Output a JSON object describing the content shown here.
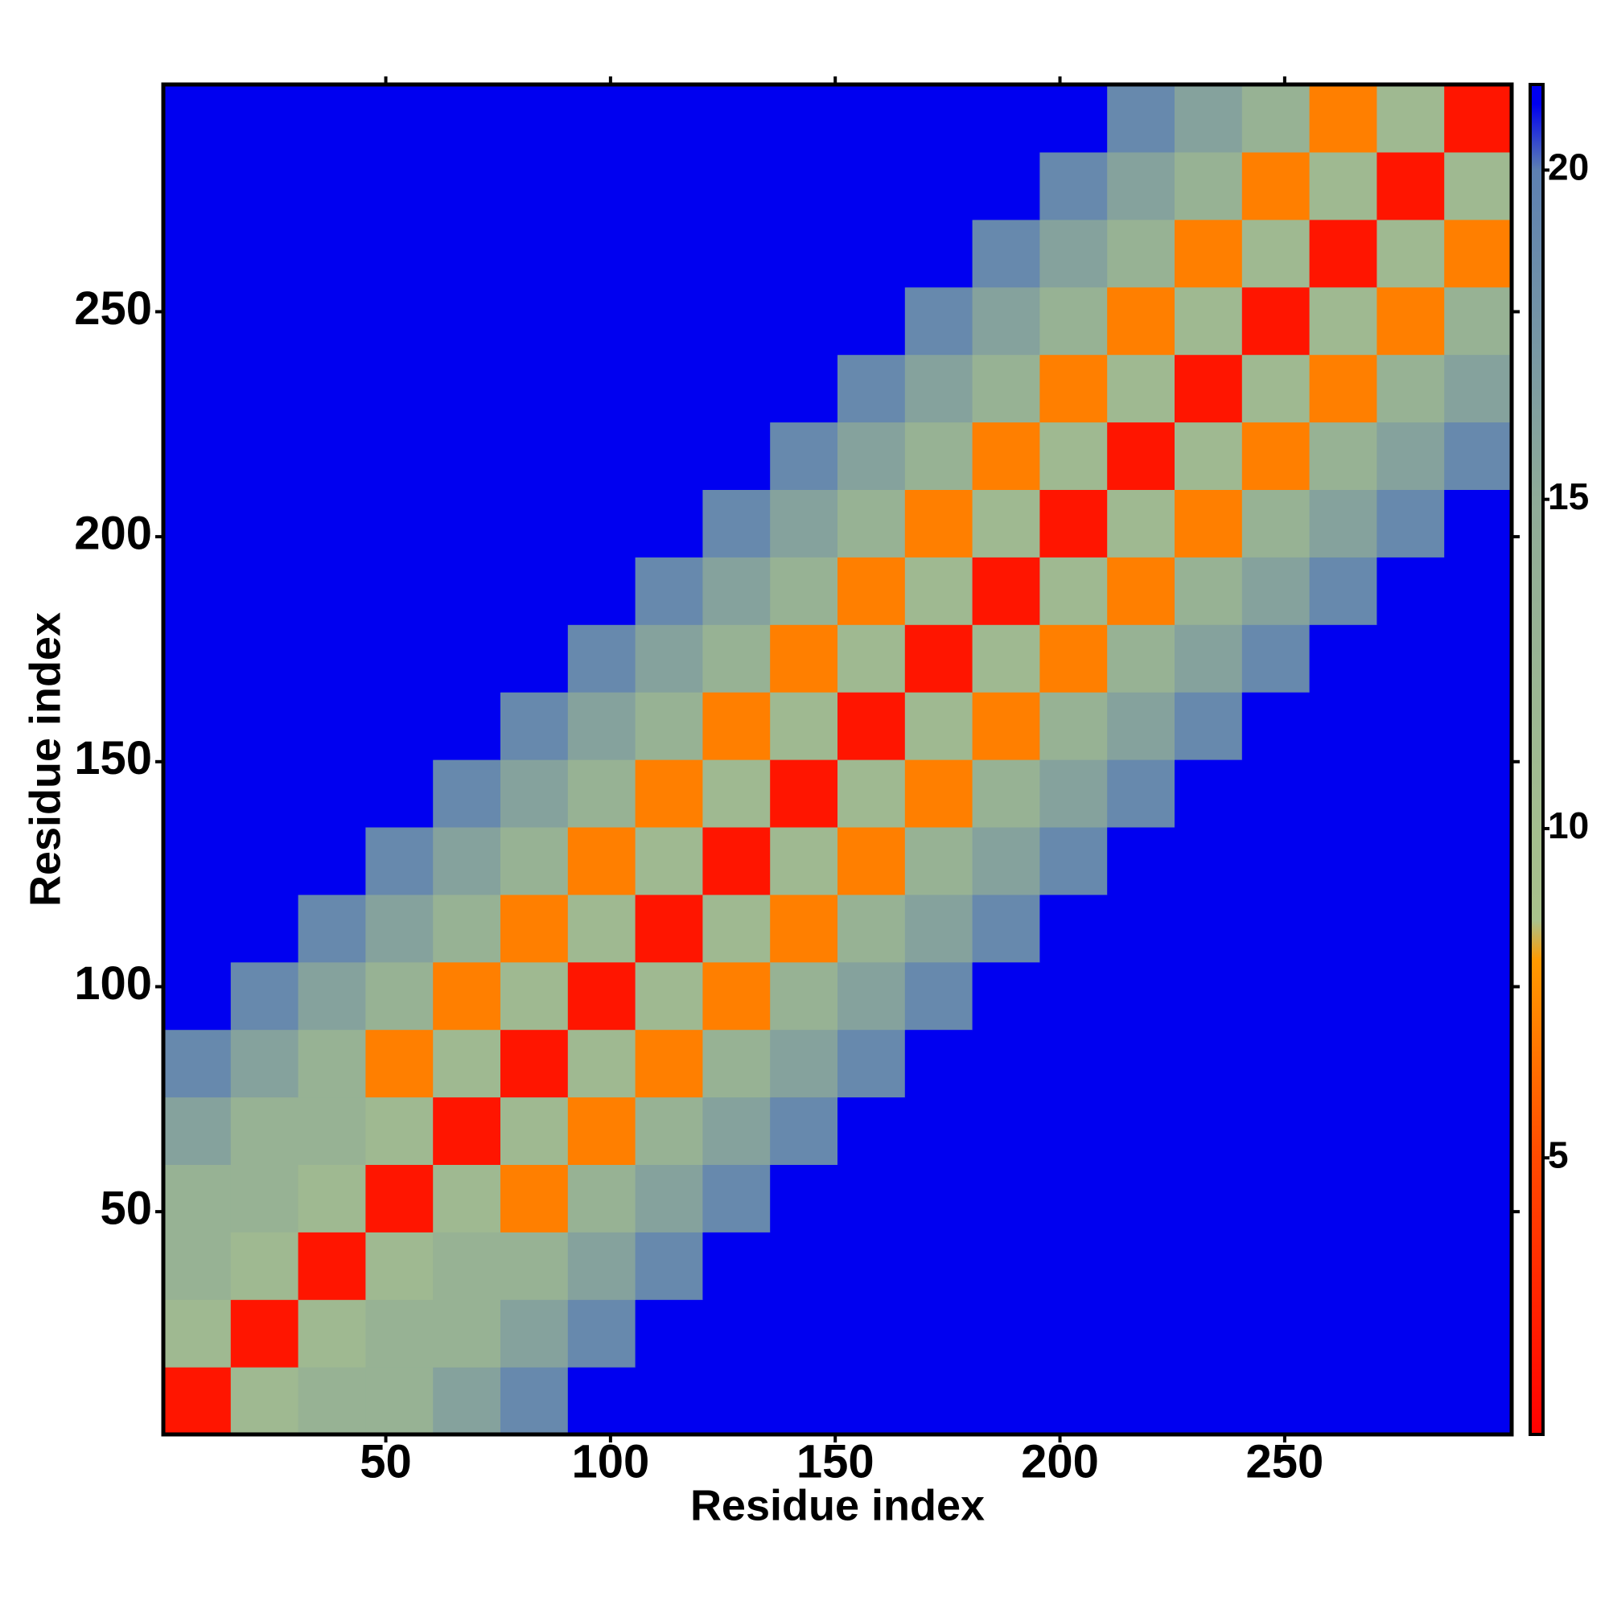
{
  "chart_data": {
    "type": "heatmap",
    "xlabel": "Residue index",
    "ylabel": "Residue index",
    "x": [
      8,
      23,
      38,
      53,
      68,
      83,
      98,
      113,
      128,
      143,
      158,
      173,
      188,
      203,
      218,
      233,
      248,
      263,
      278,
      293
    ],
    "y": [
      8,
      23,
      38,
      53,
      68,
      83,
      98,
      113,
      128,
      143,
      158,
      173,
      188,
      203,
      218,
      233,
      248,
      263,
      278,
      293
    ],
    "xlim": [
      0.5,
      300.5
    ],
    "ylim": [
      0.5,
      300.5
    ],
    "xticks": [
      50,
      100,
      150,
      200,
      250
    ],
    "yticks": [
      50,
      100,
      150,
      200,
      250
    ],
    "zlim": [
      0.8,
      21.3
    ],
    "zticks": [
      5,
      10,
      15,
      20
    ],
    "colorscale": [
      [
        0.8,
        "#ff0000"
      ],
      [
        5,
        "#ff4a00"
      ],
      [
        8,
        "#ff9a00"
      ],
      [
        8.6,
        "#a9c28c"
      ],
      [
        15,
        "#8fab98"
      ],
      [
        20,
        "#5d80b2"
      ],
      [
        21,
        "#0000f0"
      ]
    ],
    "z": [
      [
        2,
        11,
        13,
        13,
        16,
        19,
        21,
        21,
        21,
        21,
        21,
        21,
        21,
        21,
        21,
        21,
        21,
        21,
        21,
        21
      ],
      [
        11,
        2,
        11,
        13,
        13,
        16,
        19,
        21,
        21,
        21,
        21,
        21,
        21,
        21,
        21,
        21,
        21,
        21,
        21,
        21
      ],
      [
        13,
        11,
        2,
        11,
        13,
        13,
        16,
        19,
        21,
        21,
        21,
        21,
        21,
        21,
        21,
        21,
        21,
        21,
        21,
        21
      ],
      [
        13,
        13,
        11,
        2,
        11,
        7,
        13,
        16,
        19,
        21,
        21,
        21,
        21,
        21,
        21,
        21,
        21,
        21,
        21,
        21
      ],
      [
        16,
        13,
        13,
        11,
        2,
        11,
        7,
        13,
        16,
        19,
        21,
        21,
        21,
        21,
        21,
        21,
        21,
        21,
        21,
        21
      ],
      [
        19,
        16,
        13,
        7,
        11,
        2,
        11,
        7,
        13,
        16,
        19,
        21,
        21,
        21,
        21,
        21,
        21,
        21,
        21,
        21
      ],
      [
        21,
        19,
        16,
        13,
        7,
        11,
        2,
        11,
        7,
        13,
        16,
        19,
        21,
        21,
        21,
        21,
        21,
        21,
        21,
        21
      ],
      [
        21,
        21,
        19,
        16,
        13,
        7,
        11,
        2,
        11,
        7,
        13,
        16,
        19,
        21,
        21,
        21,
        21,
        21,
        21,
        21
      ],
      [
        21,
        21,
        21,
        19,
        16,
        13,
        7,
        11,
        2,
        11,
        7,
        13,
        16,
        19,
        21,
        21,
        21,
        21,
        21,
        21
      ],
      [
        21,
        21,
        21,
        21,
        19,
        16,
        13,
        7,
        11,
        2,
        11,
        7,
        13,
        16,
        19,
        21,
        21,
        21,
        21,
        21
      ],
      [
        21,
        21,
        21,
        21,
        21,
        19,
        16,
        13,
        7,
        11,
        2,
        11,
        7,
        13,
        16,
        19,
        21,
        21,
        21,
        21
      ],
      [
        21,
        21,
        21,
        21,
        21,
        21,
        19,
        16,
        13,
        7,
        11,
        2,
        11,
        7,
        13,
        16,
        19,
        21,
        21,
        21
      ],
      [
        21,
        21,
        21,
        21,
        21,
        21,
        21,
        19,
        16,
        13,
        7,
        11,
        2,
        11,
        7,
        13,
        16,
        19,
        21,
        21
      ],
      [
        21,
        21,
        21,
        21,
        21,
        21,
        21,
        21,
        19,
        16,
        13,
        7,
        11,
        2,
        11,
        7,
        13,
        16,
        19,
        21
      ],
      [
        21,
        21,
        21,
        21,
        21,
        21,
        21,
        21,
        21,
        19,
        16,
        13,
        7,
        11,
        2,
        11,
        7,
        13,
        16,
        19
      ],
      [
        21,
        21,
        21,
        21,
        21,
        21,
        21,
        21,
        21,
        21,
        19,
        16,
        13,
        7,
        11,
        2,
        11,
        7,
        13,
        16
      ],
      [
        21,
        21,
        21,
        21,
        21,
        21,
        21,
        21,
        21,
        21,
        21,
        19,
        16,
        13,
        7,
        11,
        2,
        11,
        7,
        13
      ],
      [
        21,
        21,
        21,
        21,
        21,
        21,
        21,
        21,
        21,
        21,
        21,
        21,
        19,
        16,
        13,
        7,
        11,
        2,
        11,
        7
      ],
      [
        21,
        21,
        21,
        21,
        21,
        21,
        21,
        21,
        21,
        21,
        21,
        21,
        21,
        19,
        16,
        13,
        7,
        11,
        2,
        11
      ],
      [
        21,
        21,
        21,
        21,
        21,
        21,
        21,
        21,
        21,
        21,
        21,
        21,
        21,
        21,
        19,
        16,
        13,
        7,
        11,
        2
      ]
    ]
  }
}
